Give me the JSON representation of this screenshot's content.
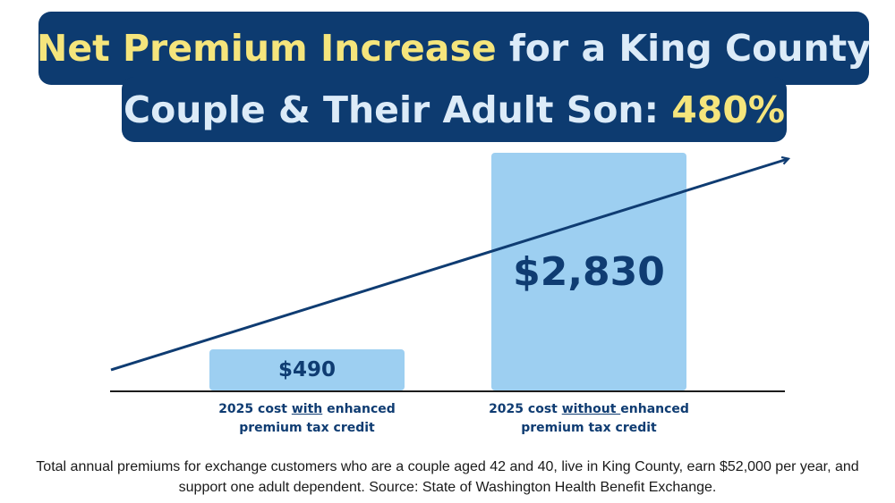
{
  "title": {
    "line1_highlight": "Net Premium Increase",
    "line1_rest": " for a King County",
    "line2_rest": "Couple & Their Adult Son: ",
    "line2_highlight": "480%"
  },
  "colors": {
    "title_bg": "#0d3b70",
    "title_text": "#dcebf8",
    "highlight": "#f5e57c",
    "bar_fill": "#9dcff1",
    "bar_text": "#0f3c72",
    "trend_arrow": "#0f3c72"
  },
  "chart_data": {
    "type": "bar",
    "categories": [
      "2025 cost with enhanced premium tax credit",
      "2025 cost without enhanced premium tax credit"
    ],
    "values": [
      490,
      2830
    ],
    "value_labels": [
      "$490",
      "$2,830"
    ],
    "ylim": [
      0,
      2830
    ],
    "annotation": "upward trend arrow",
    "percent_increase": "480%"
  },
  "labels": {
    "cat1_pre": "2025 cost ",
    "cat1_u": "with",
    "cat1_post": " enhanced",
    "cat1_line2": "premium tax credit",
    "cat2_pre": "2025 cost ",
    "cat2_u": "without ",
    "cat2_post": "enhanced",
    "cat2_line2": "premium tax credit"
  },
  "caption": "Total annual premiums for exchange customers who are a couple aged 42 and 40, live in King County, earn $52,000 per year, and support one adult dependent. Source: State of Washington Health Benefit Exchange."
}
